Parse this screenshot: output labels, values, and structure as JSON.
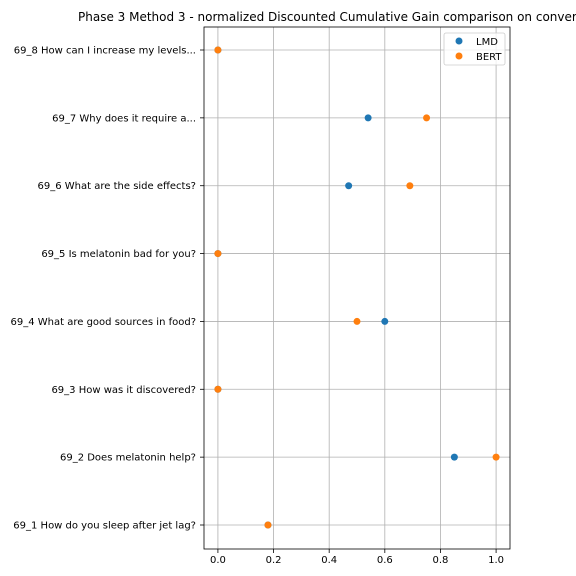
{
  "chart_data": {
    "type": "scatter",
    "title": "Phase 3 Method 3 - normalized Discounted Cumulative Gain comparison on conver",
    "xlabel": "",
    "ylabel": "",
    "xlim": [
      -0.05,
      1.05
    ],
    "x_ticks": [
      "0.0",
      "0.2",
      "0.4",
      "0.6",
      "0.8",
      "1.0"
    ],
    "x_tick_values": [
      0.0,
      0.2,
      0.4,
      0.6,
      0.8,
      1.0
    ],
    "categories": [
      "69_1 How do you sleep after jet lag?",
      "69_2 Does melatonin help?",
      "69_3 How was it discovered?",
      "69_4 What are good sources in food?",
      "69_5 Is melatonin bad for you?",
      "69_6 What are the side effects?",
      "69_7 Why does it require a...",
      "69_8 How can I increase my levels..."
    ],
    "grid": true,
    "legend_position": "top-right",
    "series": [
      {
        "name": "LMD",
        "color": "#1f77b4",
        "values": [
          0.18,
          0.85,
          0.0,
          0.6,
          0.0,
          0.47,
          0.54,
          0.0
        ]
      },
      {
        "name": "BERT",
        "color": "#ff7f0e",
        "values": [
          0.18,
          1.0,
          0.0,
          0.5,
          0.0,
          0.69,
          0.75,
          0.0
        ]
      }
    ]
  }
}
